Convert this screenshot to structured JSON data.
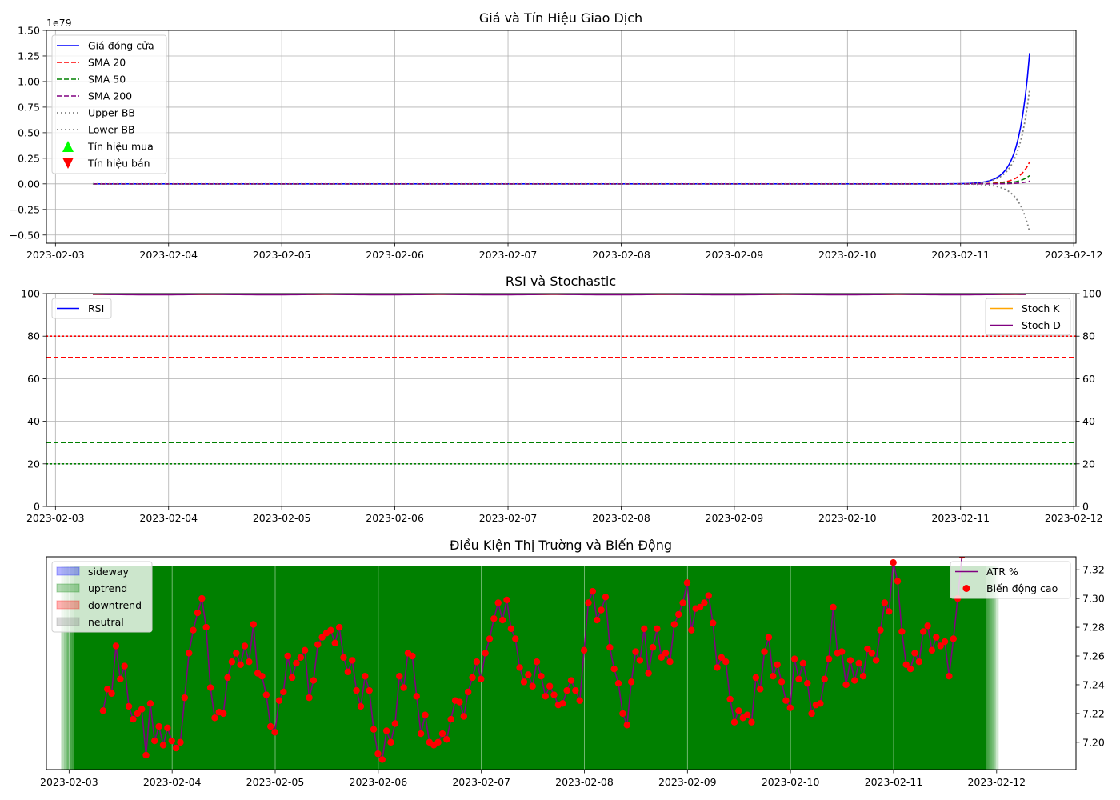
{
  "chart_data": [
    {
      "type": "line",
      "title": "Giá và Tín Hiệu Giao Dịch",
      "y_offset_label": "1e79",
      "x_tick_labels": [
        "2023-02-03",
        "2023-02-04",
        "2023-02-05",
        "2023-02-06",
        "2023-02-07",
        "2023-02-08",
        "2023-02-09",
        "2023-02-10",
        "2023-02-11",
        "2023-02-12"
      ],
      "x_range_days": [
        -0.08,
        9.02
      ],
      "ylim": [
        -0.58,
        1.5
      ],
      "y_ticks": [
        -0.5,
        -0.25,
        0.0,
        0.25,
        0.5,
        0.75,
        1.0,
        1.25,
        1.5
      ],
      "y_tick_labels": [
        "−0.50",
        "−0.25",
        "0.00",
        "0.25",
        "0.50",
        "0.75",
        "1.00",
        "1.25",
        "1.50"
      ],
      "grid": true,
      "legend_position": "upper left",
      "legend": [
        "Giá đóng cửa",
        "SMA 20",
        "SMA 50",
        "SMA 200",
        "Upper BB",
        "Lower BB",
        "Tín hiệu mua",
        "Tín hiệu bán"
      ],
      "x_range_data_days": [
        0.33,
        8.62
      ],
      "series": [
        {
          "name": "Giá đóng cửa",
          "color": "#0000ff",
          "style": "solid",
          "end_value": 1.42,
          "growth": 0.095
        },
        {
          "name": "SMA 20",
          "color": "#ff0000",
          "style": "dashed",
          "end_value": 0.24,
          "growth": 0.09
        },
        {
          "name": "SMA 50",
          "color": "#008000",
          "style": "dashed",
          "end_value": 0.09,
          "growth": 0.09
        },
        {
          "name": "SMA 200",
          "color": "#800080",
          "style": "dashed",
          "end_value": 0.03,
          "growth": 0.08
        },
        {
          "name": "Upper BB",
          "color": "#808080",
          "style": "dotted",
          "end_value": 1.02,
          "growth": 0.1
        },
        {
          "name": "Lower BB",
          "color": "#808080",
          "style": "dotted",
          "end_value": -0.52,
          "growth": 0.1
        }
      ],
      "markers": [
        {
          "name": "Tín hiệu mua",
          "color": "#00ff00",
          "shape": "triangle-up"
        },
        {
          "name": "Tín hiệu bán",
          "color": "#ff0000",
          "shape": "triangle-down"
        }
      ]
    },
    {
      "type": "line",
      "title": "RSI và Stochastic",
      "x_tick_labels": [
        "2023-02-03",
        "2023-02-04",
        "2023-02-05",
        "2023-02-06",
        "2023-02-07",
        "2023-02-08",
        "2023-02-09",
        "2023-02-10",
        "2023-02-11",
        "2023-02-12"
      ],
      "x_range_days": [
        -0.08,
        9.02
      ],
      "ylim": [
        0,
        100
      ],
      "y_ticks": [
        0,
        20,
        40,
        60,
        80,
        100
      ],
      "y_tick_labels": [
        "0",
        "20",
        "40",
        "60",
        "80",
        "100"
      ],
      "y2_tick_labels": [
        "0",
        "20",
        "40",
        "60",
        "80",
        "100"
      ],
      "grid": true,
      "legend_left": [
        "RSI"
      ],
      "legend_right": [
        "Stoch K",
        "Stoch D"
      ],
      "series": [
        {
          "name": "RSI",
          "color": "#0000ff",
          "value": 99.9
        },
        {
          "name": "Stoch K",
          "color": "#ffa500",
          "value": 99.8
        },
        {
          "name": "Stoch D",
          "color": "#800080",
          "value": 99.7
        }
      ],
      "hlines": [
        {
          "y": 80,
          "color": "#ff0000",
          "style": "dotted"
        },
        {
          "y": 70,
          "color": "#ff0000",
          "style": "dashed"
        },
        {
          "y": 30,
          "color": "#008000",
          "style": "dashed"
        },
        {
          "y": 20,
          "color": "#008000",
          "style": "dotted"
        }
      ]
    },
    {
      "type": "area",
      "title": "Điều Kiện Thị Trường và Biến Động",
      "x_tick_labels": [
        "2023-02-03",
        "2023-02-04",
        "2023-02-05",
        "2023-02-06",
        "2023-02-07",
        "2023-02-08",
        "2023-02-09",
        "2023-02-10",
        "2023-02-11",
        "2023-02-12"
      ],
      "x_range_days": [
        -0.22,
        9.77
      ],
      "legend_left": [
        "sideway",
        "uptrend",
        "downtrend",
        "neutral"
      ],
      "legend_colors": [
        "#0000ff",
        "#008000",
        "#ff0000",
        "#808080"
      ],
      "legend_right": [
        "ATR %",
        "Biến động cao"
      ],
      "y2lim": [
        7.181,
        7.329
      ],
      "y2_ticks": [
        7.2,
        7.22,
        7.24,
        7.26,
        7.28,
        7.3,
        7.32
      ],
      "y2_tick_labels": [
        "7.20",
        "7.22",
        "7.24",
        "7.26",
        "7.28",
        "7.30",
        "7.32"
      ],
      "band_days": [
        -0.08,
        9.02
      ],
      "band_color": "#008000",
      "atr_color": "#800080",
      "marker_color": "#ff0000",
      "atr_x_start_days": 0.33,
      "atr_x_step_days": 0.04167,
      "atr_pct": [
        7.222,
        7.237,
        7.234,
        7.267,
        7.244,
        7.253,
        7.225,
        7.216,
        7.22,
        7.223,
        7.191,
        7.227,
        7.201,
        7.211,
        7.198,
        7.21,
        7.201,
        7.196,
        7.2,
        7.231,
        7.262,
        7.278,
        7.29,
        7.3,
        7.28,
        7.238,
        7.217,
        7.221,
        7.22,
        7.245,
        7.256,
        7.262,
        7.254,
        7.267,
        7.256,
        7.282,
        7.248,
        7.246,
        7.233,
        7.211,
        7.207,
        7.229,
        7.235,
        7.26,
        7.245,
        7.255,
        7.259,
        7.264,
        7.231,
        7.243,
        7.268,
        7.273,
        7.276,
        7.278,
        7.269,
        7.28,
        7.259,
        7.249,
        7.257,
        7.236,
        7.225,
        7.246,
        7.236,
        7.209,
        7.192,
        7.188,
        7.208,
        7.2,
        7.213,
        7.246,
        7.238,
        7.262,
        7.26,
        7.232,
        7.206,
        7.219,
        7.2,
        7.198,
        7.2,
        7.206,
        7.202,
        7.216,
        7.229,
        7.228,
        7.218,
        7.235,
        7.245,
        7.256,
        7.244,
        7.262,
        7.272,
        7.286,
        7.297,
        7.285,
        7.299,
        7.279,
        7.272,
        7.252,
        7.242,
        7.247,
        7.239,
        7.256,
        7.246,
        7.232,
        7.239,
        7.233,
        7.226,
        7.227,
        7.236,
        7.243,
        7.236,
        7.229,
        7.264,
        7.297,
        7.305,
        7.285,
        7.292,
        7.301,
        7.266,
        7.251,
        7.241,
        7.22,
        7.212,
        7.242,
        7.263,
        7.257,
        7.279,
        7.248,
        7.266,
        7.279,
        7.259,
        7.262,
        7.256,
        7.282,
        7.289,
        7.297,
        7.311,
        7.278,
        7.293,
        7.294,
        7.297,
        7.302,
        7.283,
        7.252,
        7.259,
        7.256,
        7.23,
        7.214,
        7.222,
        7.217,
        7.219,
        7.214,
        7.245,
        7.237,
        7.263,
        7.273,
        7.246,
        7.254,
        7.242,
        7.229,
        7.224,
        7.258,
        7.244,
        7.255,
        7.241,
        7.22,
        7.226,
        7.227,
        7.244,
        7.258,
        7.294,
        7.262,
        7.263,
        7.24,
        7.257,
        7.243,
        7.255,
        7.246,
        7.265,
        7.262,
        7.257,
        7.278,
        7.297,
        7.291,
        7.325,
        7.312,
        7.277,
        7.254,
        7.251,
        7.262,
        7.256,
        7.277,
        7.281,
        7.264,
        7.273,
        7.267,
        7.27,
        7.246,
        7.272,
        7.3,
        7.33
      ]
    }
  ]
}
